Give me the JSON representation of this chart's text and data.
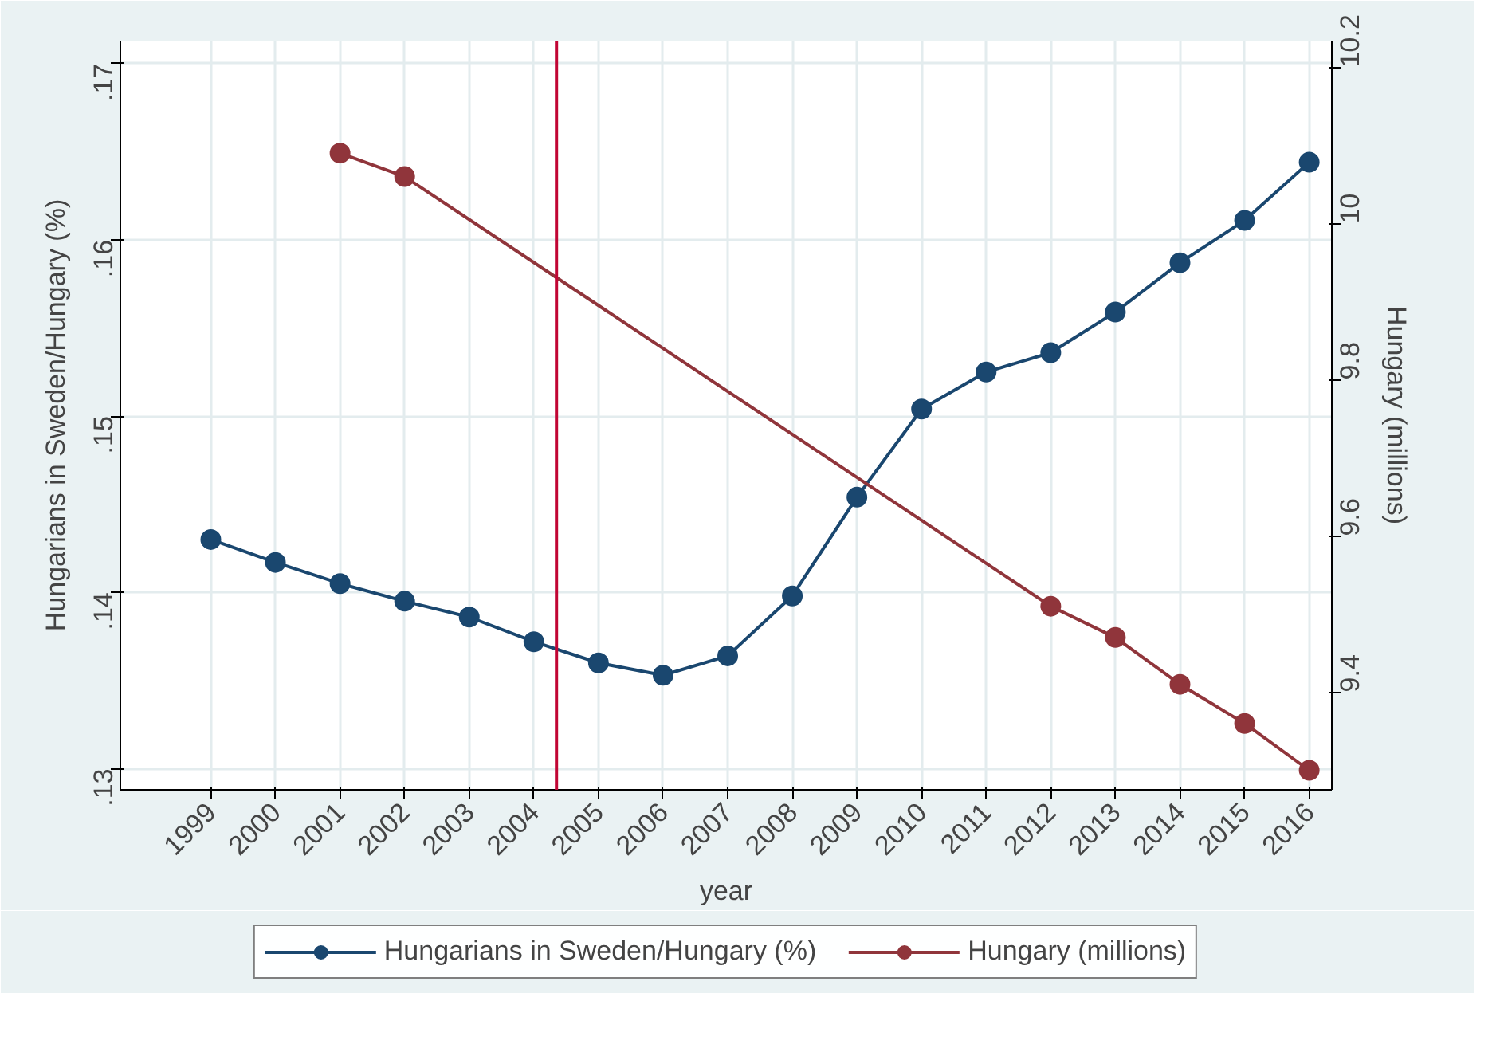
{
  "chart_data": {
    "type": "line",
    "xlabel": "year",
    "ylabel": "Hungarians in Sweden/Hungary (%)",
    "y2label": "Hungary (millions)",
    "x": [
      1999,
      2000,
      2001,
      2002,
      2003,
      2004,
      2005,
      2006,
      2007,
      2008,
      2009,
      2010,
      2011,
      2012,
      2013,
      2014,
      2015,
      2016
    ],
    "series": [
      {
        "name": "Hungarians in Sweden/Hungary (%)",
        "color": "#1a476f",
        "values": [
          0.143,
          0.1417,
          0.1405,
          0.1395,
          0.1386,
          0.1372,
          0.136,
          0.1353,
          0.1364,
          0.1398,
          0.1454,
          0.1504,
          0.1525,
          0.1536,
          0.1559,
          0.1587,
          0.1611,
          0.1644
        ]
      },
      {
        "name": "Hungary (millions)",
        "color": "#90353b",
        "axis": "y2",
        "x": [
          2001,
          2002,
          2012,
          2013,
          2014,
          2015,
          2016
        ],
        "values": [
          10.09,
          10.06,
          9.51,
          9.47,
          9.41,
          9.36,
          9.3
        ]
      }
    ],
    "xlim": [
      1997.6,
      2016.35
    ],
    "xticks": [
      1999,
      2000,
      2001,
      2002,
      2003,
      2004,
      2005,
      2006,
      2007,
      2008,
      2009,
      2010,
      2011,
      2012,
      2013,
      2014,
      2015,
      2016
    ],
    "ylim": [
      0.1288,
      0.1713
    ],
    "yticks": [
      {
        "value": 0.13,
        "label": ".13"
      },
      {
        "value": 0.14,
        "label": ".14"
      },
      {
        "value": 0.15,
        "label": ".15"
      },
      {
        "value": 0.16,
        "label": ".16"
      },
      {
        "value": 0.17,
        "label": ".17"
      }
    ],
    "y2lim": [
      9.275,
      10.234
    ],
    "y2ticks": [
      9.4,
      9.6,
      9.8,
      10,
      10.2
    ],
    "ref_lines": [
      {
        "axis": "x",
        "value": 2004.35,
        "color": "#c10534"
      }
    ],
    "grid": true,
    "legend": "bottom",
    "marker": "circle",
    "line_style": "solid"
  }
}
